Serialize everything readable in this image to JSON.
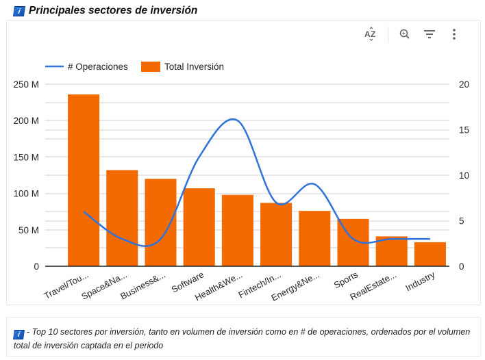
{
  "header": {
    "info_icon_label": "i",
    "title": "Principales sectores de inversión"
  },
  "toolbar": {
    "sort_icon": "sort-az-icon",
    "zoom_icon": "zoom-in-icon",
    "filter_icon": "filter-icon",
    "more_icon": "more-vertical-icon"
  },
  "colors": {
    "bar": "#f26a00",
    "line": "#2f73da",
    "grid": "#d9d9d9",
    "axis": "#222222"
  },
  "chart_data": {
    "type": "bar",
    "title": "Principales sectores de inversión",
    "categories": [
      "Travel/Tou...",
      "Space&Na...",
      "Business&...",
      "Software",
      "Health&We...",
      "Fintech/In...",
      "Energy&Ne...",
      "Sports",
      "RealEstate...",
      "Industry"
    ],
    "series": [
      {
        "name": "Total Inversión",
        "type": "bar",
        "axis": "left",
        "values": [
          236000000,
          132000000,
          120000000,
          107000000,
          98000000,
          87000000,
          76000000,
          65000000,
          41000000,
          33000000
        ]
      },
      {
        "name": "# Operaciones",
        "type": "line",
        "axis": "right",
        "smooth": true,
        "values": [
          6,
          3,
          3,
          12,
          16,
          7,
          9,
          3,
          3,
          3
        ]
      }
    ],
    "legend": {
      "position": "top-left",
      "entries": [
        "# Operaciones",
        "Total Inversión"
      ]
    },
    "y_left": {
      "min": 0,
      "max": 250000000,
      "ticks": [
        0,
        50000000,
        100000000,
        150000000,
        200000000,
        250000000
      ],
      "tick_labels": [
        "0",
        "50 M",
        "100 M",
        "150 M",
        "200 M",
        "250 M"
      ]
    },
    "y_right": {
      "min": 0,
      "max": 20,
      "ticks": [
        0,
        5,
        10,
        15,
        20
      ],
      "tick_labels": [
        "0",
        "5",
        "10",
        "15",
        "20"
      ]
    },
    "xlabel": "",
    "ylabel": "",
    "grid": true
  },
  "footer": {
    "info_icon_label": "i",
    "text": "- Top 10 sectores por inversión, tanto en volumen de inversión como en # de operaciones, ordenados por el volumen total de inversión captada en el periodo"
  }
}
